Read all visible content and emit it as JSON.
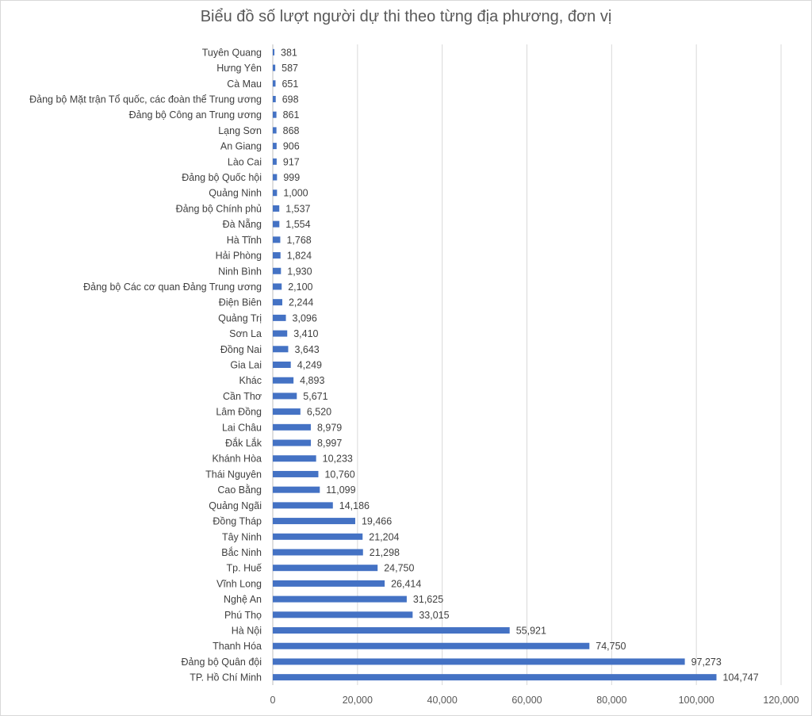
{
  "chart_data": {
    "type": "bar",
    "orientation": "horizontal",
    "title": "Biểu đồ số lượt người dự thi theo từng địa phương, đơn vị",
    "xlabel": "",
    "ylabel": "",
    "xlim": [
      0,
      120000
    ],
    "x_ticks": [
      "0",
      "20,000",
      "40,000",
      "60,000",
      "80,000",
      "100,000",
      "120,000"
    ],
    "gridlines": true,
    "legend": "none",
    "bar_color": "#4472c4",
    "categories": [
      "Tuyên Quang",
      "Hưng Yên",
      "Cà Mau",
      "Đảng bộ Mặt trận Tổ quốc, các đoàn thể Trung ương",
      "Đảng bộ Công an Trung ương",
      "Lạng Sơn",
      "An Giang",
      "Lào Cai",
      "Đảng bộ Quốc hội",
      "Quảng Ninh",
      "Đảng bộ Chính phủ",
      "Đà Nẵng",
      "Hà Tĩnh",
      "Hải Phòng",
      "Ninh Bình",
      "Đảng bộ Các cơ quan Đảng Trung ương",
      "Điện Biên",
      "Quảng Trị",
      "Sơn La",
      "Đồng Nai",
      "Gia Lai",
      "Khác",
      "Cần Thơ",
      "Lâm Đồng",
      "Lai Châu",
      "Đắk Lắk",
      "Khánh Hòa",
      "Thái Nguyên",
      "Cao Bằng",
      "Quảng Ngãi",
      "Đồng Tháp",
      "Tây Ninh",
      "Bắc Ninh",
      "Tp. Huế",
      "Vĩnh Long",
      "Nghệ An",
      "Phú Thọ",
      "Hà Nội",
      "Thanh Hóa",
      "Đảng bộ Quân đội",
      "TP. Hồ Chí Minh"
    ],
    "values": [
      381,
      587,
      651,
      698,
      861,
      868,
      906,
      917,
      999,
      1000,
      1537,
      1554,
      1768,
      1824,
      1930,
      2100,
      2244,
      3096,
      3410,
      3643,
      4249,
      4893,
      5671,
      6520,
      8979,
      8997,
      10233,
      10760,
      11099,
      14186,
      19466,
      21204,
      21298,
      24750,
      26414,
      31625,
      33015,
      55921,
      74750,
      97273,
      104747
    ],
    "value_labels": [
      "381",
      "587",
      "651",
      "698",
      "861",
      "868",
      "906",
      "917",
      "999",
      "1,000",
      "1,537",
      "1,554",
      "1,768",
      "1,824",
      "1,930",
      "2,100",
      "2,244",
      "3,096",
      "3,410",
      "3,643",
      "4,249",
      "4,893",
      "5,671",
      "6,520",
      "8,979",
      "8,997",
      "10,233",
      "10,760",
      "11,099",
      "14,186",
      "19,466",
      "21,204",
      "21,298",
      "24,750",
      "26,414",
      "31,625",
      "33,015",
      "55,921",
      "74,750",
      "97,273",
      "104,747"
    ]
  }
}
